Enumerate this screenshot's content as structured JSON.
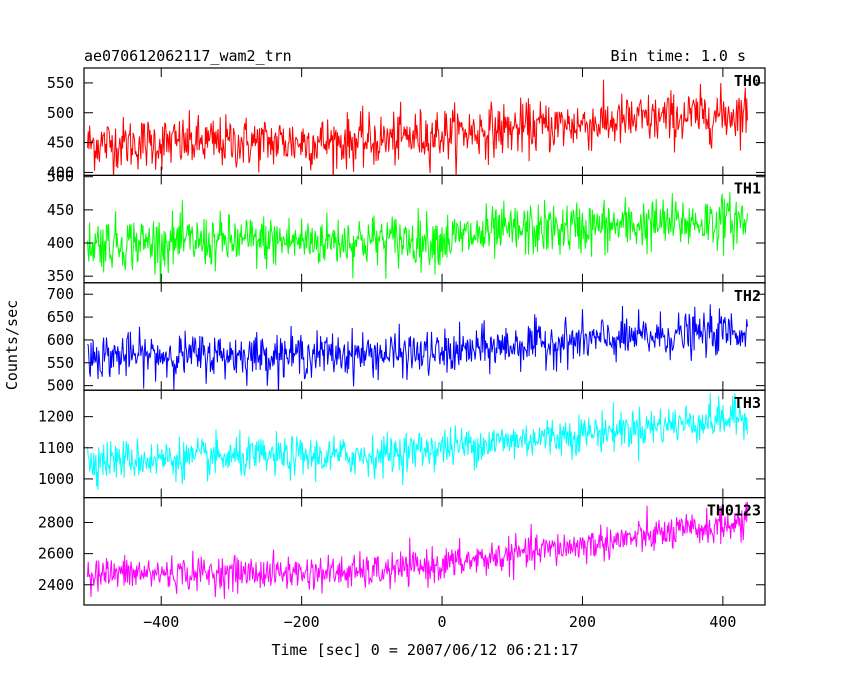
{
  "chart_data": {
    "type": "line",
    "title": "ae070612062117_wam2_trn",
    "bin_time_label": "Bin time: 1.0 s",
    "xlabel": "Time [sec] 0 = 2007/06/12 06:21:17",
    "ylabel": "Counts/sec",
    "xlim": [
      -510,
      460
    ],
    "x_ticks": [
      -400,
      -200,
      0,
      200,
      400
    ],
    "x_tick_labels": [
      "−400",
      "−200",
      "0",
      "200",
      "400"
    ],
    "x_data_range": [
      -505,
      435
    ],
    "panels": [
      {
        "name": "TH0",
        "color": "#ff0000",
        "ylim": [
          395,
          575
        ],
        "yticks": [
          400,
          450,
          500,
          550
        ],
        "trend": [
          [
            -505,
            448
          ],
          [
            -100,
            452
          ],
          [
            0,
            465
          ],
          [
            435,
            500
          ]
        ],
        "noise": 22
      },
      {
        "name": "TH1",
        "color": "#00ff00",
        "ylim": [
          340,
          502
        ],
        "yticks": [
          350,
          400,
          450,
          500
        ],
        "trend": [
          [
            -505,
            400
          ],
          [
            0,
            405
          ],
          [
            100,
            418
          ],
          [
            435,
            435
          ]
        ],
        "noise": 20
      },
      {
        "name": "TH2",
        "color": "#0000ff",
        "ylim": [
          490,
          725
        ],
        "yticks": [
          500,
          550,
          600,
          650,
          700
        ],
        "trend": [
          [
            -505,
            565
          ],
          [
            0,
            570
          ],
          [
            100,
            588
          ],
          [
            435,
            620
          ]
        ],
        "noise": 24
      },
      {
        "name": "TH3",
        "color": "#00ffff",
        "ylim": [
          940,
          1285
        ],
        "yticks": [
          1000,
          1100,
          1200
        ],
        "trend": [
          [
            -505,
            1060
          ],
          [
            -100,
            1075
          ],
          [
            0,
            1100
          ],
          [
            435,
            1200
          ]
        ],
        "noise": 32
      },
      {
        "name": "TH0123",
        "color": "#ff00ff",
        "ylim": [
          2270,
          2960
        ],
        "yticks": [
          2400,
          2600,
          2800
        ],
        "trend": [
          [
            -505,
            2470
          ],
          [
            -100,
            2480
          ],
          [
            0,
            2530
          ],
          [
            435,
            2800
          ]
        ],
        "noise": 55
      }
    ]
  }
}
